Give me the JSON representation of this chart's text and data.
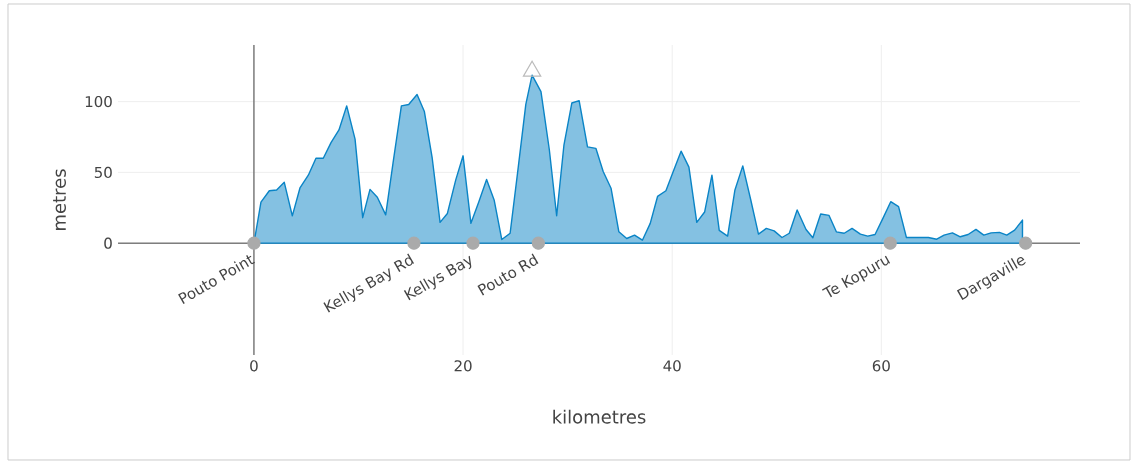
{
  "chart_data": {
    "type": "area",
    "xlabel": "kilometres",
    "ylabel": "metres",
    "xlim": [
      -13,
      79
    ],
    "ylim": [
      -79,
      140
    ],
    "xticks": [
      0,
      20,
      40,
      60
    ],
    "yticks": [
      0,
      50,
      100
    ],
    "grid": true,
    "series": [
      {
        "color": "#0a84c6",
        "marker": "none",
        "x": [
          0,
          0.67,
          1.47,
          2.17,
          2.9,
          3.67,
          4.4,
          5.2,
          5.93,
          6.63,
          7.37,
          8.13,
          8.87,
          9.67,
          10.4,
          11.1,
          11.8,
          12.6,
          13.3,
          14.1,
          14.8,
          15.6,
          16.3,
          17.05,
          17.8,
          18.5,
          19.3,
          20.0,
          20.75,
          21.5,
          22.25,
          22.97,
          23.7,
          24.5,
          25.2,
          26.0,
          26.6,
          27.45,
          28.25,
          28.95,
          29.65,
          30.4,
          31.1,
          31.9,
          32.7,
          33.4,
          34.15,
          34.9,
          35.65,
          36.4,
          37.15,
          37.9,
          38.6,
          39.4,
          40.1,
          40.85,
          41.6,
          42.35,
          43.1,
          43.8,
          44.5,
          45.3,
          46.0,
          46.75,
          47.5,
          48.25,
          49.0,
          49.75,
          50.5,
          51.2,
          51.95,
          52.8,
          53.45,
          54.2,
          55.0,
          55.7,
          56.45,
          57.2,
          58.0,
          58.7,
          59.4,
          60.15,
          60.9,
          61.65,
          62.4,
          64.5,
          65.3,
          66.0,
          66.8,
          67.55,
          68.3,
          69.05,
          69.8,
          70.5,
          71.3,
          72.0,
          72.75,
          73.5
        ],
        "values": [
          0,
          29,
          37,
          37.6,
          43,
          19.3,
          39,
          48,
          60,
          60,
          71,
          80,
          97,
          73.5,
          18,
          38,
          32.4,
          20,
          56.5,
          97,
          98,
          105,
          93,
          60,
          14.7,
          21,
          44.7,
          61.7,
          14,
          29,
          45,
          30.5,
          2.6,
          7,
          49,
          98,
          118.7,
          107,
          66,
          19.4,
          69.5,
          99,
          100.7,
          68,
          67,
          50.6,
          38.8,
          8,
          3.3,
          5.7,
          2.1,
          14,
          33,
          37,
          50.6,
          65,
          53.7,
          14.7,
          22,
          48,
          9,
          5,
          37.6,
          54.6,
          31,
          6.4,
          10.4,
          8.7,
          4,
          7,
          23.4,
          9.7,
          3.8,
          20.6,
          19.6,
          8,
          7,
          10.4,
          6.4,
          5,
          6.1,
          17.5,
          29.3,
          25.8,
          4,
          4,
          2.8,
          5.7,
          7.3,
          4.5,
          6.1,
          9.7,
          5.7,
          7.3,
          7.6,
          5.7,
          9.2,
          16.3
        ]
      },
      {
        "type": "scatter",
        "color": "#aaaaaa",
        "marker": "circle",
        "x": [
          0,
          15.3,
          20.95,
          27.2,
          60.85,
          73.8
        ],
        "values": [
          0,
          0,
          0,
          0,
          0,
          0
        ]
      },
      {
        "type": "scatter",
        "color": "#bbbbbb",
        "marker": "triangle",
        "x": [
          26.6
        ],
        "values": [
          121.5
        ]
      }
    ],
    "annotations": [
      {
        "text": "Pouto Point",
        "x": 0,
        "y": 0
      },
      {
        "text": "Kellys Bay Rd",
        "x": 15.3,
        "y": 0
      },
      {
        "text": "Kellys Bay",
        "x": 20.95,
        "y": 0
      },
      {
        "text": "Pouto Rd",
        "x": 27.2,
        "y": 0
      },
      {
        "text": "Te Kopuru",
        "x": 60.85,
        "y": 0
      },
      {
        "text": "Dargaville",
        "x": 73.8,
        "y": 0
      }
    ]
  }
}
